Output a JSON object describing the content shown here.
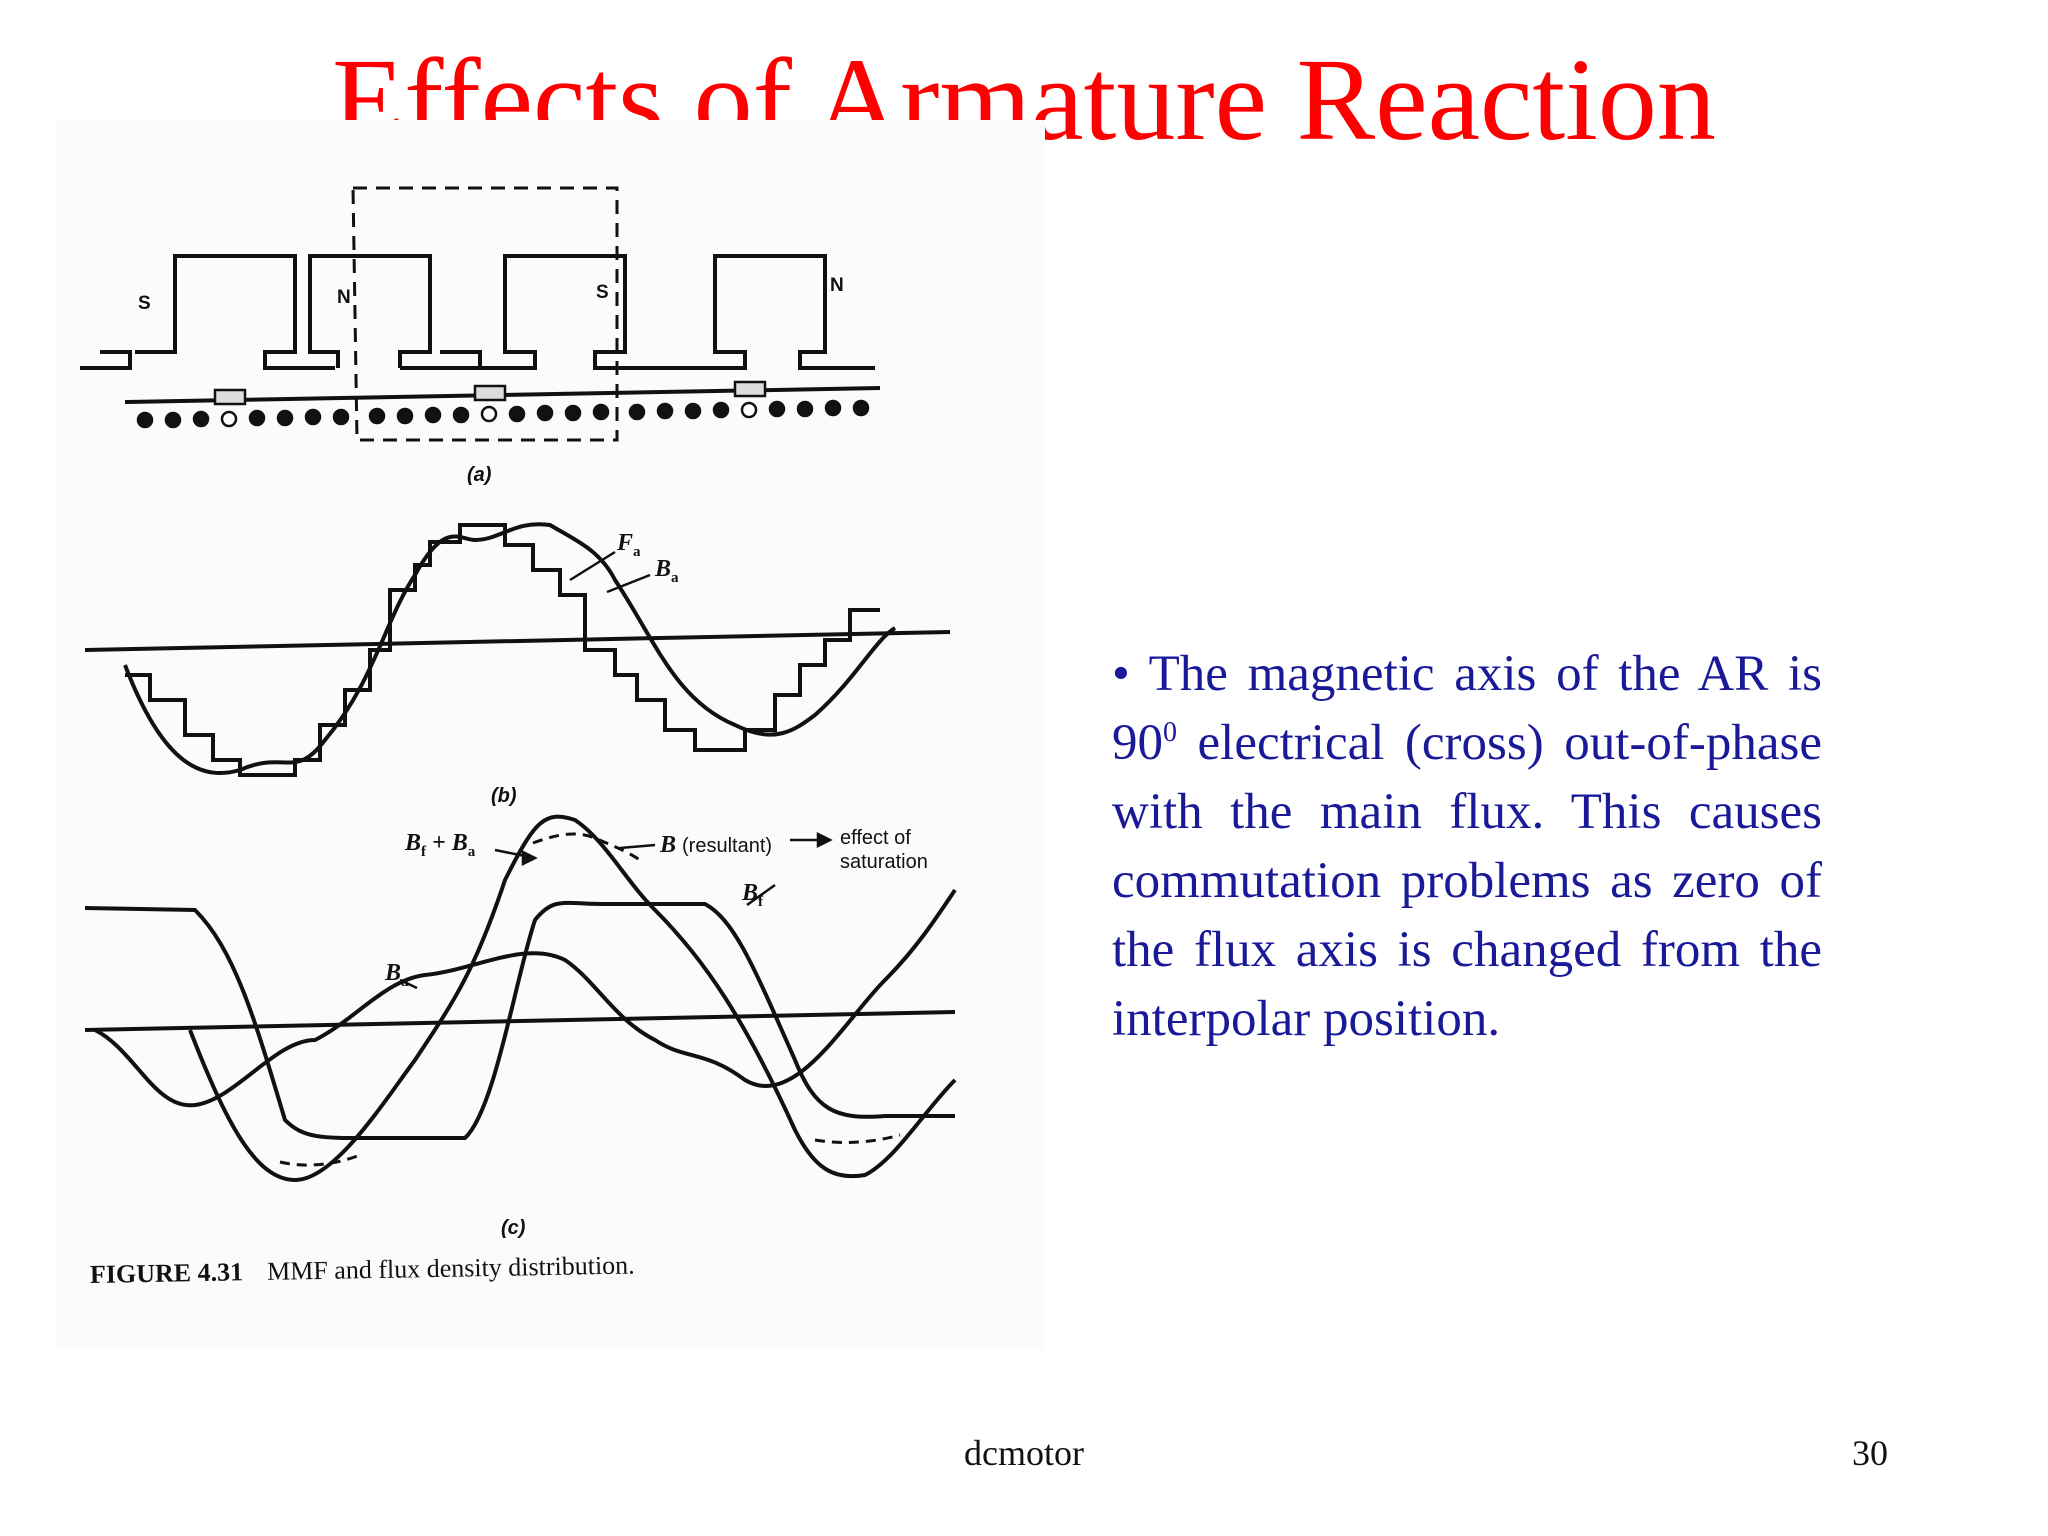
{
  "slide": {
    "title": "Effects of Armature Reaction",
    "footer": "dcmotor",
    "page_number": "30"
  },
  "figure": {
    "poles": [
      "S",
      "N",
      "S",
      "N"
    ],
    "panel_labels": {
      "a": "(a)",
      "b": "(b)",
      "c": "(c)"
    },
    "curve_labels": {
      "fa": {
        "main": "F",
        "sub": "a"
      },
      "ba": {
        "main": "B",
        "sub": "a"
      },
      "bf_plus_ba": {
        "main": "B",
        "sub1": "f",
        "plus": "+ B",
        "sub2": "a"
      },
      "b_resultant": {
        "main": "B",
        "rest": "(resultant)"
      },
      "effect_of_saturation": [
        "effect of",
        "saturation"
      ],
      "bf": {
        "main": "B",
        "sub": "f"
      },
      "ba_c": {
        "main": "B",
        "sub": "a"
      }
    },
    "caption": {
      "number": "FIGURE 4.31",
      "text": "MMF and flux density distribution."
    }
  },
  "bullet": {
    "marker": "•",
    "before_sup": "The magnetic axis of the AR is 90",
    "sup": "0",
    "after_sup": " electrical (cross) out-of-phase with the main flux. This causes commutation problems as zero of the flux axis is changed from the interpolar position."
  }
}
